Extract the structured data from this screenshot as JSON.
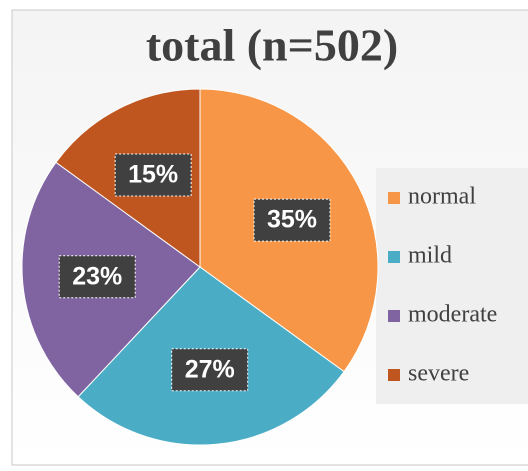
{
  "chart_data": {
    "type": "pie",
    "title": "total (n=502)",
    "categories": [
      "normal",
      "mild",
      "moderate",
      "severe"
    ],
    "values": [
      35,
      27,
      23,
      15
    ],
    "value_labels": [
      "35%",
      "27%",
      "23%",
      "15%"
    ],
    "colors": [
      "#f79646",
      "#4bacc6",
      "#8064a2",
      "#c0561f"
    ],
    "legend": "right"
  }
}
